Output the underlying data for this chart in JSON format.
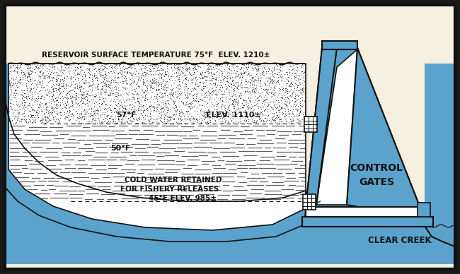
{
  "bg_outer": "#1a1a1a",
  "bg_cream": "#f5f0e0",
  "blue": "#5ba3cc",
  "white": "#ffffff",
  "dark": "#111111",
  "gray_mid": "#888888",
  "title_text": "RESERVOIR SURFACE TEMPERATURE 75°F  ELEV. 1210±",
  "label_57": "57°F",
  "label_elev1110": "ELEV. 1110±",
  "label_50": "50°F",
  "label_cold1": "COLD WATER RETAINED",
  "label_cold2": "FOR FISHERY RELEASES",
  "label_45": "45°F ELEV. 985±",
  "label_control": "CONTROL\nGATES",
  "label_creek": "CLEAR CREEK",
  "figsize": [
    6.5,
    3.88
  ],
  "dpi": 100
}
